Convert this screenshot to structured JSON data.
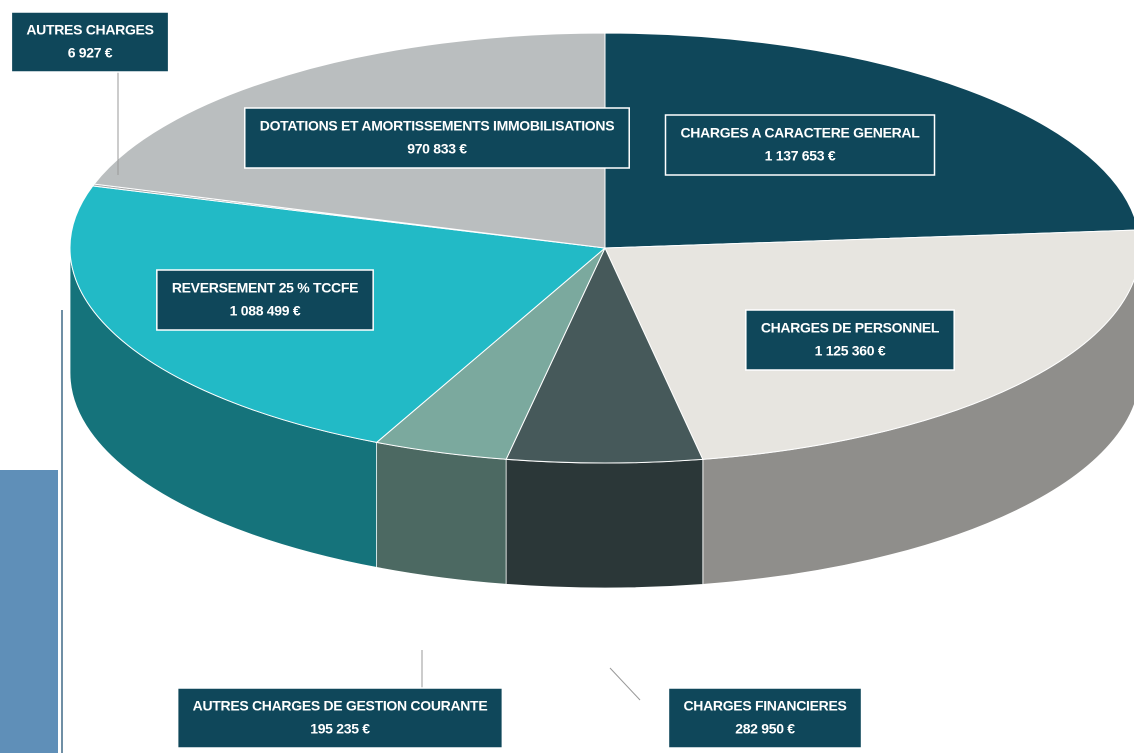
{
  "chart_data": {
    "type": "pie",
    "categories": [
      "CHARGES A CARACTERE GENERAL",
      "CHARGES DE PERSONNEL",
      "CHARGES FINANCIERES",
      "AUTRES CHARGES DE GESTION COURANTE",
      "REVERSEMENT 25 % TCCFE",
      "AUTRES CHARGES",
      "DOTATIONS ET AMORTISSEMENTS IMMOBILISATIONS"
    ],
    "values": [
      1137653,
      1125360,
      282950,
      195235,
      1088499,
      6927,
      970833
    ],
    "value_labels": [
      "1 137 653 €",
      "1 125 360 €",
      "282 950 €",
      "195 235 €",
      "1 088 499 €",
      "6 927 €",
      "970 833 €"
    ],
    "colors": [
      "#0f475a",
      "#e7e5e0",
      "#46595a",
      "#7ba99e",
      "#22bac6",
      "#9ea3a4",
      "#babebf"
    ]
  }
}
